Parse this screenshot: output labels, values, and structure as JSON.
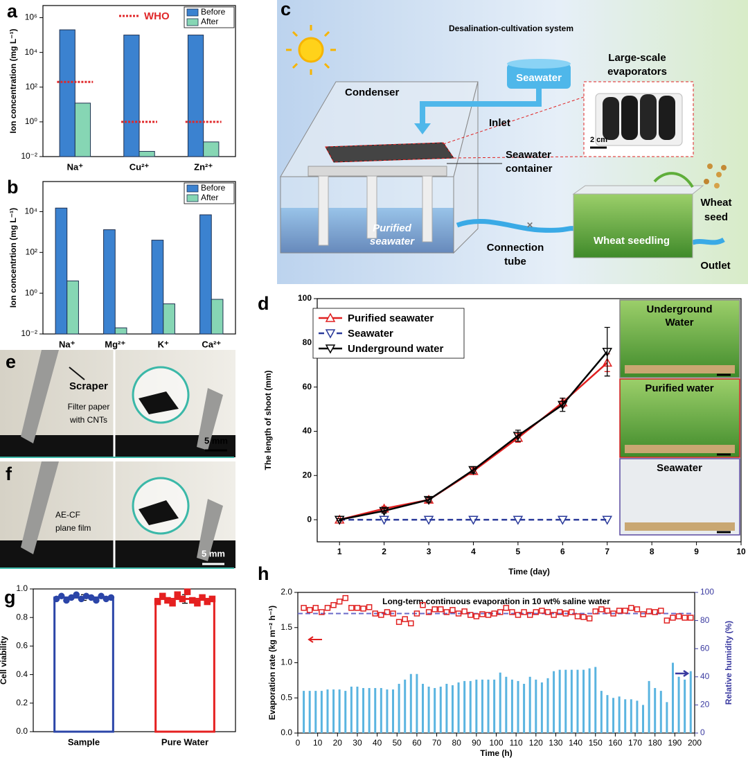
{
  "chart_data": [
    {
      "panel": "a",
      "type": "bar",
      "log_y": true,
      "ylabel": "Ion concentration (mg L⁻¹)",
      "categories": [
        "Na⁺",
        "Cu²⁺",
        "Zn²⁺"
      ],
      "series": [
        {
          "name": "Before",
          "color": "#3b82d0",
          "values": [
            200000,
            100000,
            100000
          ]
        },
        {
          "name": "After",
          "color": "#86d6b4",
          "values": [
            12,
            0.02,
            0.07
          ]
        }
      ],
      "reference": {
        "name": "WHO",
        "color": "#e0282a",
        "values": [
          200,
          1,
          1
        ]
      },
      "ylim": [
        0.01,
        5000000
      ],
      "yticks": [
        {
          "value": 0.01,
          "label": "10⁻²"
        },
        {
          "value": 1,
          "label": "10⁰"
        },
        {
          "value": 100,
          "label": "10²"
        },
        {
          "value": 10000,
          "label": "10⁴"
        },
        {
          "value": 1000000,
          "label": "10⁶"
        }
      ]
    },
    {
      "panel": "b",
      "type": "bar",
      "log_y": true,
      "ylabel": "Ion concentrtion (mg L⁻¹)",
      "categories": [
        "Na⁺",
        "Mg²⁺",
        "K⁺",
        "Ca²⁺"
      ],
      "series": [
        {
          "name": "Before",
          "color": "#3b82d0",
          "values": [
            15000,
            1300,
            400,
            7000
          ]
        },
        {
          "name": "After",
          "color": "#86d6b4",
          "values": [
            4,
            0.02,
            0.3,
            0.5
          ]
        }
      ],
      "ylim": [
        0.01,
        300000
      ],
      "yticks": [
        {
          "value": 0.01,
          "label": "10⁻²"
        },
        {
          "value": 1,
          "label": "10⁰"
        },
        {
          "value": 100,
          "label": "10²"
        },
        {
          "value": 10000,
          "label": "10⁴"
        }
      ]
    },
    {
      "panel": "d",
      "type": "line",
      "xlabel": "Time (day)",
      "ylabel": "The length of shoot (mm)",
      "x": [
        1,
        2,
        3,
        4,
        5,
        6,
        7
      ],
      "series": [
        {
          "name": "Purified seawater",
          "color": "#e02020",
          "marker": "up",
          "values": [
            0,
            5,
            9,
            22,
            37,
            53,
            71
          ],
          "errors": [
            0.5,
            1,
            1,
            1.5,
            2,
            2,
            4
          ]
        },
        {
          "name": "Seawater",
          "color": "#2a3a9a",
          "marker": "down",
          "dashed": true,
          "values": [
            0,
            0,
            0,
            0,
            0,
            0,
            0
          ]
        },
        {
          "name": "Underground water",
          "color": "#000000",
          "marker": "down",
          "values": [
            0,
            4,
            9,
            22.5,
            38,
            52,
            76
          ],
          "errors": [
            0.5,
            1,
            1,
            1.5,
            2.5,
            3,
            11
          ]
        }
      ],
      "xlim": [
        0.5,
        10
      ],
      "xticks": [
        1,
        2,
        3,
        4,
        5,
        6,
        7,
        8,
        9,
        10
      ],
      "ylim": [
        -10,
        100
      ],
      "yticks": [
        0,
        20,
        40,
        60,
        80,
        100
      ],
      "insets": [
        [
          "Underground",
          "Water"
        ],
        [
          "Purified water"
        ],
        [
          "Seawater"
        ]
      ]
    },
    {
      "panel": "g",
      "type": "bar",
      "ylabel": "Cell viability",
      "categories": [
        "Sample",
        "Pure Water"
      ],
      "values": [
        0.94,
        0.93
      ],
      "errors": [
        0.02,
        0.03
      ],
      "colors": [
        "#2b45a8",
        "#e52020"
      ],
      "markers": [
        "circle",
        "square"
      ],
      "points": [
        [
          0.93,
          0.95,
          0.92,
          0.94,
          0.96,
          0.93,
          0.95,
          0.94,
          0.92,
          0.95,
          0.93,
          0.94
        ],
        [
          0.91,
          0.95,
          0.92,
          0.9,
          0.96,
          0.93,
          0.98,
          0.92,
          0.9,
          0.94,
          0.91,
          0.93
        ]
      ],
      "ylim": [
        0,
        1
      ],
      "yticks": [
        {
          "value": 0,
          "label": "0.0"
        },
        0.2,
        0.4,
        0.6,
        0.8,
        {
          "value": 1,
          "label": "1.0"
        }
      ]
    },
    {
      "panel": "h",
      "type": "combo",
      "title": "Long-term continuous evaporation in 10 wt% saline water",
      "xlabel": "Time (h)",
      "ylabel": "Evaporation rate (kg m⁻² h⁻¹)",
      "y2label": "Relative humidity (%)",
      "x": [
        3,
        6,
        9,
        12,
        15,
        18,
        21,
        24,
        27,
        30,
        33,
        36,
        39,
        42,
        45,
        48,
        51,
        54,
        57,
        60,
        63,
        66,
        69,
        72,
        75,
        78,
        81,
        84,
        87,
        90,
        93,
        96,
        99,
        102,
        105,
        108,
        111,
        114,
        117,
        120,
        123,
        126,
        129,
        132,
        135,
        138,
        141,
        144,
        147,
        150,
        153,
        156,
        159,
        162,
        165,
        168,
        171,
        174,
        177,
        180,
        183,
        186,
        189,
        192,
        195,
        198
      ],
      "series": [
        {
          "type": "scatter",
          "color": "#e02020",
          "values": [
            1.78,
            1.75,
            1.78,
            1.72,
            1.78,
            1.82,
            1.87,
            1.92,
            1.78,
            1.78,
            1.77,
            1.79,
            1.7,
            1.68,
            1.72,
            1.7,
            1.58,
            1.62,
            1.56,
            1.7,
            1.82,
            1.72,
            1.76,
            1.76,
            1.72,
            1.75,
            1.7,
            1.73,
            1.68,
            1.66,
            1.69,
            1.68,
            1.7,
            1.72,
            1.78,
            1.72,
            1.68,
            1.72,
            1.68,
            1.72,
            1.74,
            1.72,
            1.68,
            1.72,
            1.7,
            1.72,
            1.66,
            1.65,
            1.63,
            1.73,
            1.76,
            1.74,
            1.7,
            1.74,
            1.74,
            1.78,
            1.76,
            1.69,
            1.73,
            1.72,
            1.74,
            1.6,
            1.64,
            1.66,
            1.64,
            1.64
          ]
        },
        {
          "type": "bar",
          "axis": "y2",
          "color": "#5ab4e0",
          "values": [
            30,
            30,
            30,
            30,
            31,
            31,
            31,
            30,
            33,
            33,
            32,
            32,
            32,
            32,
            31,
            31,
            35,
            38,
            42,
            42,
            35,
            33,
            32,
            33,
            35,
            34,
            36,
            37,
            37,
            38,
            38,
            38,
            38,
            43,
            40,
            38,
            37,
            35,
            40,
            38,
            36,
            39,
            44,
            45,
            45,
            45,
            45,
            45,
            46,
            47,
            30,
            27,
            25,
            26,
            24,
            24,
            23,
            20,
            37,
            32,
            30,
            22,
            50,
            40,
            38,
            44
          ]
        }
      ],
      "reference_line": {
        "value": 1.7,
        "color": "#6a6ac8"
      },
      "xlim": [
        0,
        200
      ],
      "xticks": [
        0,
        10,
        20,
        30,
        40,
        50,
        60,
        70,
        80,
        90,
        100,
        110,
        120,
        130,
        140,
        150,
        160,
        170,
        180,
        190,
        200
      ],
      "ylim": [
        0,
        2
      ],
      "yticks": [
        {
          "value": 0,
          "label": "0.0"
        },
        0.5,
        {
          "value": 1,
          "label": "1.0"
        },
        1.5,
        {
          "value": 2,
          "label": "2.0"
        }
      ],
      "y2lim": [
        0,
        100
      ],
      "y2ticks": [
        0,
        20,
        40,
        60,
        80,
        100
      ]
    }
  ],
  "diagram_c": {
    "panel": "c",
    "title": "Desalination-cultivation system",
    "seawater": "Seawater",
    "evaporators": [
      "Large-scale",
      "evaporators"
    ],
    "condenser": "Condenser",
    "inlet": "Inlet",
    "scale_bar": "2 cm",
    "container": [
      "Seawater",
      "container"
    ],
    "wheat_seed": [
      "Wheat",
      "seed"
    ],
    "purified": [
      "Purified",
      "seawater"
    ],
    "tube": [
      "Connection",
      "tube"
    ],
    "seedling": "Wheat seedling",
    "outlet": "Outlet"
  },
  "photo_e": {
    "panel": "e",
    "scraper": "Scraper",
    "filter": [
      "Filter paper",
      "with CNTs"
    ],
    "scale_bar": "5 mm"
  },
  "photo_f": {
    "panel": "f",
    "film": [
      "AE-CF",
      "plane film"
    ],
    "scale_bar": "5 mm"
  }
}
